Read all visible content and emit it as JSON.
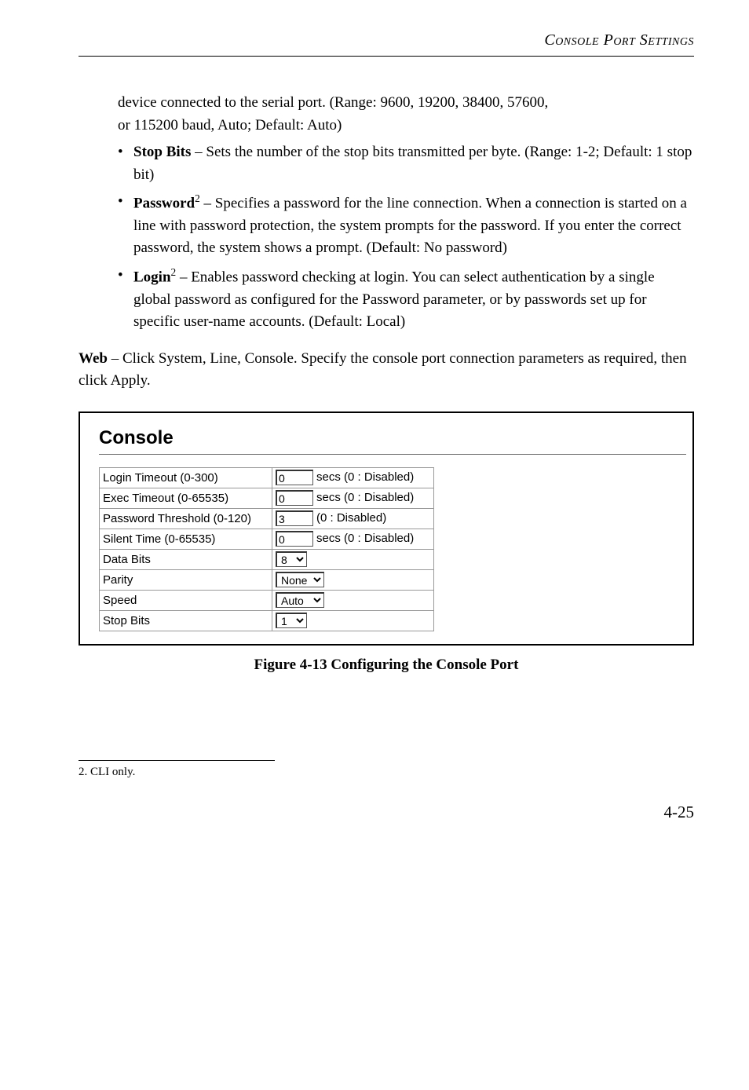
{
  "header": {
    "title": "Console Port Settings"
  },
  "intro": {
    "line1": "device connected to the serial port. (Range: 9600, 19200, 38400, 57600,",
    "line2": "or 115200 baud, Auto; Default: Auto)"
  },
  "bullets": {
    "stop_bits": {
      "label": "Stop Bits",
      "text": " – Sets the number of the stop bits transmitted per byte. (Range: 1-2; Default: 1 stop bit)"
    },
    "password": {
      "label": "Password",
      "sup": "2",
      "text": " – Specifies a password for the line connection. When a connection is started on a line with password protection, the system prompts for the password. If you enter the correct password, the system shows a prompt. (Default: No password)"
    },
    "login": {
      "label": "Login",
      "sup": "2",
      "text": " – Enables password checking at login. You can select authentication by a single global password as configured for the Password parameter, or by passwords set up for specific user-name accounts. (Default: Local)"
    }
  },
  "web_para": {
    "label": "Web",
    "text": " – Click System, Line, Console. Specify the console port connection parameters as required, then click Apply."
  },
  "console": {
    "title": "Console",
    "rows": {
      "login_timeout": {
        "label": "Login Timeout (0-300)",
        "value": "0",
        "suffix": "secs (0 : Disabled)"
      },
      "exec_timeout": {
        "label": "Exec Timeout (0-65535)",
        "value": "0",
        "suffix": "secs (0 : Disabled)"
      },
      "pwd_threshold": {
        "label": "Password Threshold (0-120)",
        "value": "3",
        "suffix": "(0 : Disabled)"
      },
      "silent_time": {
        "label": "Silent Time (0-65535)",
        "value": "0",
        "suffix": "secs (0 : Disabled)"
      },
      "data_bits": {
        "label": "Data Bits",
        "value": "8"
      },
      "parity": {
        "label": "Parity",
        "value": "None"
      },
      "speed": {
        "label": "Speed",
        "value": "Auto"
      },
      "stop_bits": {
        "label": "Stop Bits",
        "value": "1"
      }
    }
  },
  "caption": "Figure 4-13  Configuring the Console Port",
  "footnote": "2.  CLI only.",
  "page_num": "4-25"
}
